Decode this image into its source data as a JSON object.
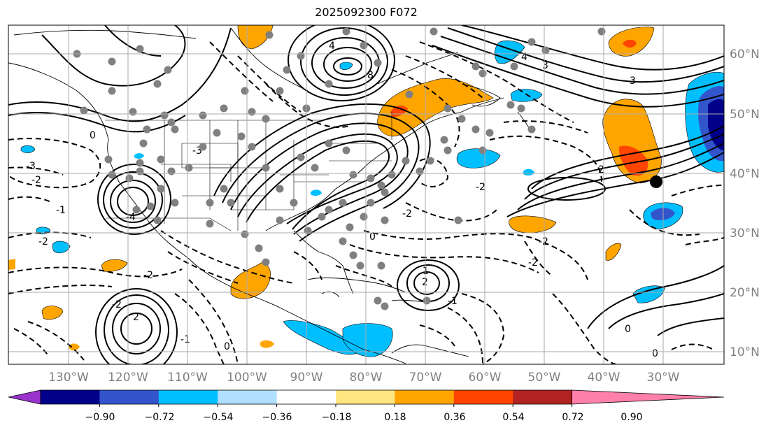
{
  "title": "2025092300 F072",
  "map": {
    "lon_labels": [
      "130°W",
      "120°W",
      "110°W",
      "100°W",
      "90°W",
      "80°W",
      "70°W",
      "60°W",
      "50°W",
      "40°W",
      "30°W"
    ],
    "lat_labels": [
      "60°N",
      "50°N",
      "40°N",
      "30°N",
      "20°N",
      "10°N"
    ],
    "label_color": "#808080"
  },
  "colorbar": {
    "ticks": [
      "−0.90",
      "−0.72",
      "−0.54",
      "−0.36",
      "−0.18",
      "0.18",
      "0.36",
      "0.54",
      "0.72",
      "0.90"
    ],
    "colors": [
      "#9933cc",
      "#00008b",
      "#3355cc",
      "#00bfff",
      "#b0e0ff",
      "#ffffff",
      "#ffe680",
      "#ffa500",
      "#ff4500",
      "#b22222",
      "#ff80aa"
    ]
  },
  "contour_labels": [
    "4",
    "8",
    "3",
    "4",
    "3",
    "-2",
    "2",
    "-3",
    "-2",
    "-1",
    "0",
    "-4",
    "-2",
    "-2",
    "2",
    "0",
    "-1",
    "-2",
    "-3",
    "0",
    "2",
    "-2",
    "1",
    "-1",
    "-2",
    "-2",
    "0",
    "0"
  ]
}
